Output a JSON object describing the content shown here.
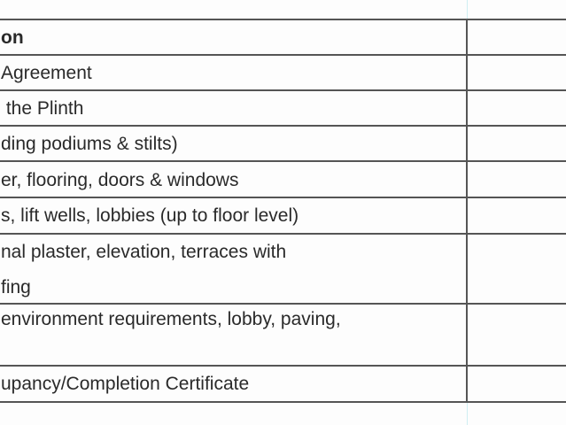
{
  "table": {
    "header": "on",
    "rows": [
      {
        "line1": "Agreement"
      },
      {
        "line1": " the Plinth"
      },
      {
        "line1": "ding podiums & stilts)"
      },
      {
        "line1": "er, flooring, doors & windows"
      },
      {
        "line1": "s, lift wells, lobbies (up to floor level)"
      },
      {
        "line1": "nal plaster, elevation, terraces with",
        "line2": "fing"
      },
      {
        "line1": "environment requirements, lobby, paving,"
      },
      {
        "line1": "upancy/Completion Certificate"
      }
    ]
  }
}
